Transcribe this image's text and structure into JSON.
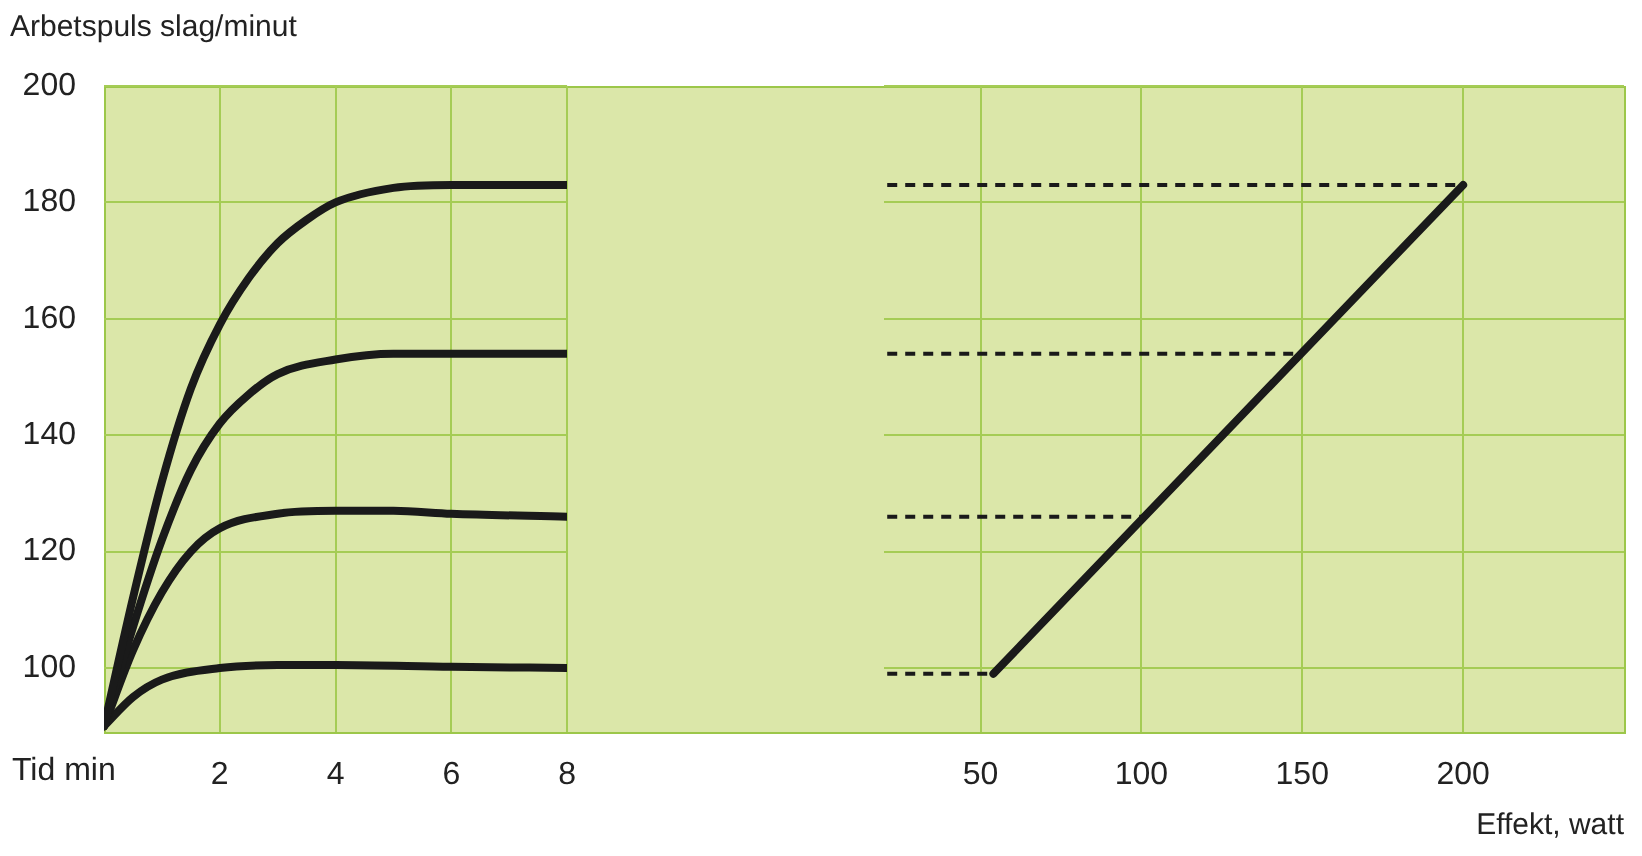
{
  "chart_data": [
    {
      "type": "line",
      "ylabel": "Arbetspuls slag/minut",
      "xlabel": "Tid min",
      "xlim": [
        0,
        8
      ],
      "xticks": [
        2,
        4,
        6,
        8
      ],
      "ylim": [
        89,
        200
      ],
      "yticks": [
        100,
        120,
        140,
        160,
        180,
        200
      ],
      "grid": true,
      "marker": "none",
      "line_style": "solid",
      "series": [
        {
          "color": "#1a1a1a",
          "x": [
            0,
            0.5,
            1,
            1.5,
            2,
            2.5,
            3,
            3.5,
            4,
            5,
            6,
            7,
            8
          ],
          "values": [
            90,
            112,
            132,
            148,
            159,
            167,
            173,
            177,
            180,
            182.5,
            183,
            183,
            183
          ]
        },
        {
          "color": "#1a1a1a",
          "x": [
            0,
            0.5,
            1,
            1.5,
            2,
            2.5,
            3,
            4,
            5,
            6,
            7,
            8
          ],
          "values": [
            90,
            107,
            122,
            134,
            142,
            147,
            150.5,
            153,
            154,
            154,
            154,
            154
          ]
        },
        {
          "color": "#1a1a1a",
          "x": [
            0,
            0.5,
            1,
            1.5,
            2,
            3,
            4,
            5,
            6,
            8
          ],
          "values": [
            90,
            103,
            113,
            120,
            124,
            126.5,
            127,
            127,
            126.5,
            126
          ]
        },
        {
          "color": "#1a1a1a",
          "x": [
            0,
            0.5,
            1,
            2,
            3,
            4,
            6,
            8
          ],
          "values": [
            90,
            95,
            98,
            100,
            100.5,
            100.5,
            100.2,
            100
          ]
        }
      ]
    },
    {
      "type": "line",
      "xlabel": "Effekt, watt",
      "xlim": [
        20,
        250
      ],
      "xticks": [
        50,
        100,
        150,
        200
      ],
      "ylim": [
        89,
        200
      ],
      "yticks": [
        100,
        120,
        140,
        160,
        180,
        200
      ],
      "grid": true,
      "marker": "none",
      "tick_labels": "x",
      "series": [
        {
          "color": "#1a1a1a",
          "x": [
            54,
            200
          ],
          "values": [
            99,
            183
          ],
          "line_style": "solid"
        },
        {
          "color": "#1a1a1a",
          "x": [
            21,
            200
          ],
          "values": [
            183,
            183
          ],
          "line_style": "dashed"
        },
        {
          "color": "#1a1a1a",
          "x": [
            21,
            150
          ],
          "values": [
            154,
            154
          ],
          "line_style": "dashed"
        },
        {
          "color": "#1a1a1a",
          "x": [
            21,
            101
          ],
          "values": [
            126,
            126
          ],
          "line_style": "dashed"
        },
        {
          "color": "#1a1a1a",
          "x": [
            21,
            54
          ],
          "values": [
            99,
            99
          ],
          "line_style": "dashed"
        }
      ]
    }
  ]
}
